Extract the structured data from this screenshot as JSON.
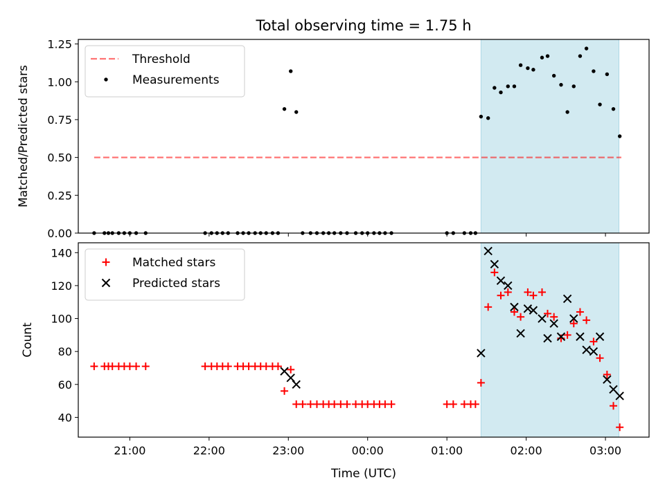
{
  "chart_data": [
    {
      "type": "scatter",
      "panel": "top",
      "title": "Total observing time = 1.75 h",
      "xlabel": "",
      "ylabel": "Matched/Predicted stars",
      "ylim": [
        0,
        1.28
      ],
      "yticks": [
        "0.00",
        "0.25",
        "0.50",
        "0.75",
        "1.00",
        "1.25"
      ],
      "xaxis": "hours after 20:00 UTC",
      "xlim": [
        0.35,
        7.55
      ],
      "legend_position": "top-left",
      "highlight_span_x": [
        5.43,
        7.17
      ],
      "highlight_color": "#add8e6",
      "threshold": {
        "name": "Threshold",
        "value": 0.5,
        "x_range": [
          0.55,
          7.2
        ],
        "color": "#ff0000"
      },
      "series": [
        {
          "name": "Measurements",
          "color": "#000000",
          "x": [
            0.55,
            0.68,
            0.73,
            0.78,
            0.86,
            0.93,
            1.0,
            1.08,
            1.2,
            1.95,
            2.03,
            2.1,
            2.17,
            2.24,
            2.36,
            2.43,
            2.5,
            2.58,
            2.65,
            2.72,
            2.8,
            2.87,
            2.95,
            3.03,
            3.1,
            3.18,
            3.28,
            3.36,
            3.44,
            3.51,
            3.58,
            3.66,
            3.74,
            3.85,
            3.93,
            4.0,
            4.08,
            4.15,
            4.22,
            4.3,
            5.0,
            5.08,
            5.22,
            5.3,
            5.36,
            5.43,
            5.52,
            5.6,
            5.68,
            5.77,
            5.85,
            5.93,
            6.02,
            6.09,
            6.2,
            6.27,
            6.35,
            6.44,
            6.52,
            6.6,
            6.68,
            6.76,
            6.85,
            6.93,
            7.02,
            7.1,
            7.18
          ],
          "y": [
            0,
            0,
            0,
            0,
            0,
            0,
            0,
            0,
            0,
            0,
            0,
            0,
            0,
            0,
            0,
            0,
            0,
            0,
            0,
            0,
            0,
            0,
            0.82,
            1.07,
            0.8,
            0,
            0,
            0,
            0,
            0,
            0,
            0,
            0,
            0,
            0,
            0,
            0,
            0,
            0,
            0,
            0,
            0,
            0,
            0,
            0,
            0.77,
            0.76,
            0.96,
            0.93,
            0.97,
            0.97,
            1.11,
            1.09,
            1.08,
            1.16,
            1.17,
            1.04,
            0.98,
            0.8,
            0.97,
            1.17,
            1.22,
            1.07,
            0.85,
            1.05,
            0.82,
            0.64
          ]
        }
      ]
    },
    {
      "type": "scatter",
      "panel": "bottom",
      "title": "",
      "xlabel": "Time (UTC)",
      "ylabel": "Count",
      "ylim": [
        28,
        146
      ],
      "yticks": [
        "40",
        "60",
        "80",
        "100",
        "120",
        "140"
      ],
      "xaxis": "hours after 20:00 UTC",
      "xlim": [
        0.35,
        7.55
      ],
      "xtick_values": [
        1,
        2,
        3,
        4,
        5,
        6,
        7
      ],
      "xticks": [
        "21:00",
        "22:00",
        "23:00",
        "00:00",
        "01:00",
        "02:00",
        "03:00"
      ],
      "legend_position": "top-left",
      "highlight_span_x": [
        5.43,
        7.17
      ],
      "highlight_color": "#add8e6",
      "series": [
        {
          "name": "Matched stars",
          "marker": "plus",
          "color": "#ff0000",
          "x": [
            0.55,
            0.68,
            0.73,
            0.78,
            0.86,
            0.93,
            1.0,
            1.08,
            1.2,
            1.95,
            2.03,
            2.1,
            2.17,
            2.24,
            2.36,
            2.43,
            2.5,
            2.58,
            2.65,
            2.72,
            2.8,
            2.87,
            2.95,
            3.03,
            3.1,
            3.18,
            3.28,
            3.36,
            3.44,
            3.51,
            3.58,
            3.66,
            3.74,
            3.85,
            3.93,
            4.0,
            4.08,
            4.15,
            4.22,
            4.3,
            5.0,
            5.08,
            5.22,
            5.3,
            5.36,
            5.43,
            5.52,
            5.6,
            5.68,
            5.77,
            5.85,
            5.93,
            6.02,
            6.09,
            6.2,
            6.27,
            6.35,
            6.44,
            6.52,
            6.6,
            6.68,
            6.76,
            6.85,
            6.93,
            7.02,
            7.1,
            7.18
          ],
          "y": [
            71,
            71,
            71,
            71,
            71,
            71,
            71,
            71,
            71,
            71,
            71,
            71,
            71,
            71,
            71,
            71,
            71,
            71,
            71,
            71,
            71,
            71,
            56,
            69,
            48,
            48,
            48,
            48,
            48,
            48,
            48,
            48,
            48,
            48,
            48,
            48,
            48,
            48,
            48,
            48,
            48,
            48,
            48,
            48,
            48,
            61,
            107,
            128,
            114,
            116,
            104,
            101,
            116,
            114,
            116,
            103,
            101,
            88,
            90,
            97,
            104,
            99,
            86,
            76,
            66,
            47,
            34
          ]
        },
        {
          "name": "Predicted stars",
          "marker": "x",
          "color": "#000000",
          "x": [
            2.95,
            3.03,
            3.1,
            5.43,
            5.52,
            5.6,
            5.68,
            5.77,
            5.85,
            5.93,
            6.02,
            6.09,
            6.2,
            6.27,
            6.35,
            6.44,
            6.52,
            6.6,
            6.68,
            6.76,
            6.85,
            6.93,
            7.02,
            7.1,
            7.18
          ],
          "y": [
            68,
            64,
            60,
            79,
            141,
            133,
            123,
            120,
            107,
            91,
            106,
            105,
            100,
            88,
            97,
            89,
            112,
            100,
            89,
            81,
            80,
            89,
            63,
            57,
            53
          ]
        }
      ]
    }
  ]
}
